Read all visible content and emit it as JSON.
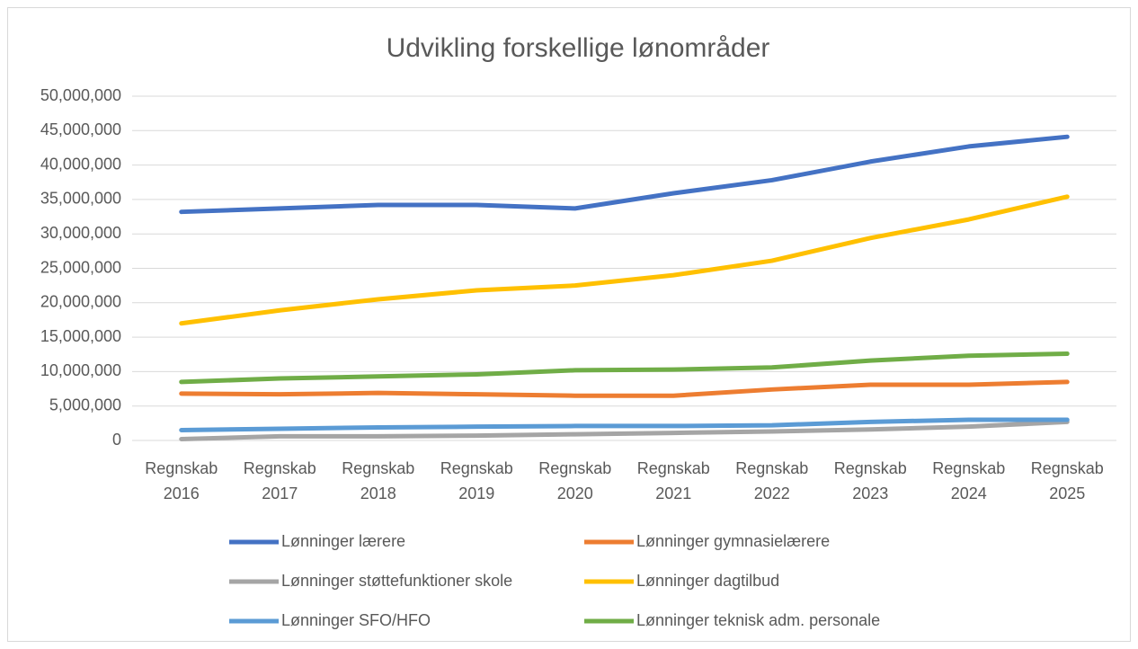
{
  "chart_data": {
    "type": "line",
    "title": "Udvikling forskellige lønområder",
    "categories": [
      "Regnskab 2016",
      "Regnskab 2017",
      "Regnskab 2018",
      "Regnskab 2019",
      "Regnskab 2020",
      "Regnskab 2021",
      "Regnskab 2022",
      "Regnskab 2023",
      "Regnskab 2024",
      "Regnskab 2025"
    ],
    "series": [
      {
        "name": "Lønninger lærere",
        "color": "#4472c4",
        "values": [
          33200000,
          33700000,
          34200000,
          34200000,
          33700000,
          35900000,
          37800000,
          40500000,
          42700000,
          44100000
        ]
      },
      {
        "name": "Lønninger gymnasielærere",
        "color": "#ed7d31",
        "values": [
          6800000,
          6700000,
          6900000,
          6700000,
          6500000,
          6500000,
          7400000,
          8100000,
          8100000,
          8500000
        ]
      },
      {
        "name": "Lønninger støttefunktioner skole",
        "color": "#a5a5a5",
        "values": [
          200000,
          600000,
          600000,
          700000,
          900000,
          1100000,
          1300000,
          1600000,
          2000000,
          2700000
        ]
      },
      {
        "name": "Lønninger dagtilbud",
        "color": "#ffc000",
        "values": [
          17000000,
          18900000,
          20500000,
          21800000,
          22500000,
          24000000,
          26100000,
          29400000,
          32100000,
          35400000
        ]
      },
      {
        "name": "Lønninger SFO/HFO",
        "color": "#5b9bd5",
        "values": [
          1500000,
          1700000,
          1900000,
          2000000,
          2100000,
          2100000,
          2200000,
          2700000,
          3000000,
          3000000
        ]
      },
      {
        "name": "Lønninger teknisk adm. personale",
        "color": "#70ad47",
        "values": [
          8500000,
          9000000,
          9300000,
          9600000,
          10200000,
          10300000,
          10600000,
          11600000,
          12300000,
          12600000
        ]
      }
    ],
    "ylim": [
      0,
      50000000
    ],
    "yticks": [
      0,
      {
        "value": 5000000,
        "label": "5,000,000"
      },
      {
        "value": 10000000,
        "label": "10,000,000"
      },
      {
        "value": 15000000,
        "label": "15,000,000"
      },
      {
        "value": 20000000,
        "label": "20,000,000"
      },
      {
        "value": 25000000,
        "label": "25,000,000"
      },
      {
        "value": 30000000,
        "label": "30,000,000"
      },
      {
        "value": 35000000,
        "label": "35,000,000"
      },
      {
        "value": 40000000,
        "label": "40,000,000"
      },
      {
        "value": 45000000,
        "label": "45,000,000"
      },
      {
        "value": 50000000,
        "label": "50,000,000"
      }
    ],
    "grid": true,
    "legend": "bottom"
  }
}
